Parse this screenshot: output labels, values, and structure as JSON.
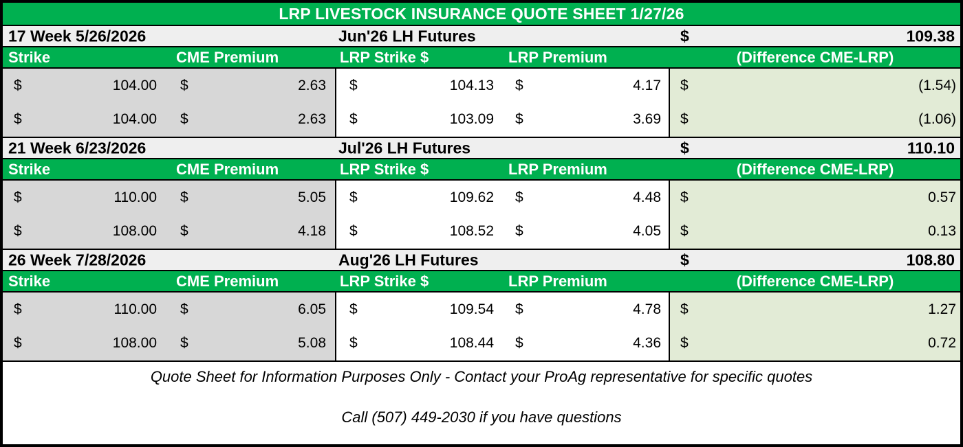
{
  "title": "LRP LIVESTOCK INSURANCE QUOTE SHEET 1/27/26",
  "currency_symbol": "$",
  "columns": {
    "strike": "Strike",
    "cme_premium": "CME Premium",
    "lrp_strike": "LRP Strike $",
    "lrp_premium": "LRP Premium",
    "difference": "(Difference CME-LRP)"
  },
  "sections": [
    {
      "week_label": "17 Week 5/26/2026",
      "futures_label": "Jun'26 LH Futures",
      "futures_price": "109.38",
      "rows": [
        {
          "strike": "104.00",
          "cme_premium": "2.63",
          "lrp_strike": "104.13",
          "lrp_premium": "4.17",
          "difference": "(1.54)"
        },
        {
          "strike": "104.00",
          "cme_premium": "2.63",
          "lrp_strike": "103.09",
          "lrp_premium": "3.69",
          "difference": "(1.06)"
        }
      ]
    },
    {
      "week_label": "21 Week 6/23/2026",
      "futures_label": "Jul'26 LH Futures",
      "futures_price": "110.10",
      "rows": [
        {
          "strike": "110.00",
          "cme_premium": "5.05",
          "lrp_strike": "109.62",
          "lrp_premium": "4.48",
          "difference": "0.57"
        },
        {
          "strike": "108.00",
          "cme_premium": "4.18",
          "lrp_strike": "108.52",
          "lrp_premium": "4.05",
          "difference": "0.13"
        }
      ]
    },
    {
      "week_label": "26 Week 7/28/2026",
      "futures_label": "Aug'26 LH Futures",
      "futures_price": "108.80",
      "rows": [
        {
          "strike": "110.00",
          "cme_premium": "6.05",
          "lrp_strike": "109.54",
          "lrp_premium": "4.78",
          "difference": "1.27"
        },
        {
          "strike": "108.00",
          "cme_premium": "5.08",
          "lrp_strike": "108.44",
          "lrp_premium": "4.36",
          "difference": "0.72"
        }
      ]
    }
  ],
  "footer": {
    "line1": "Quote Sheet for Information Purposes Only - Contact your ProAg representative for specific quotes",
    "line2": "Call (507) 449-2030 if you have questions"
  },
  "colors": {
    "header_green": "#00b050",
    "strike_block_gray": "#d7d7d7",
    "week_row_gray": "#efefef",
    "difference_green": "#e2ebd6",
    "border_black": "#000000"
  }
}
